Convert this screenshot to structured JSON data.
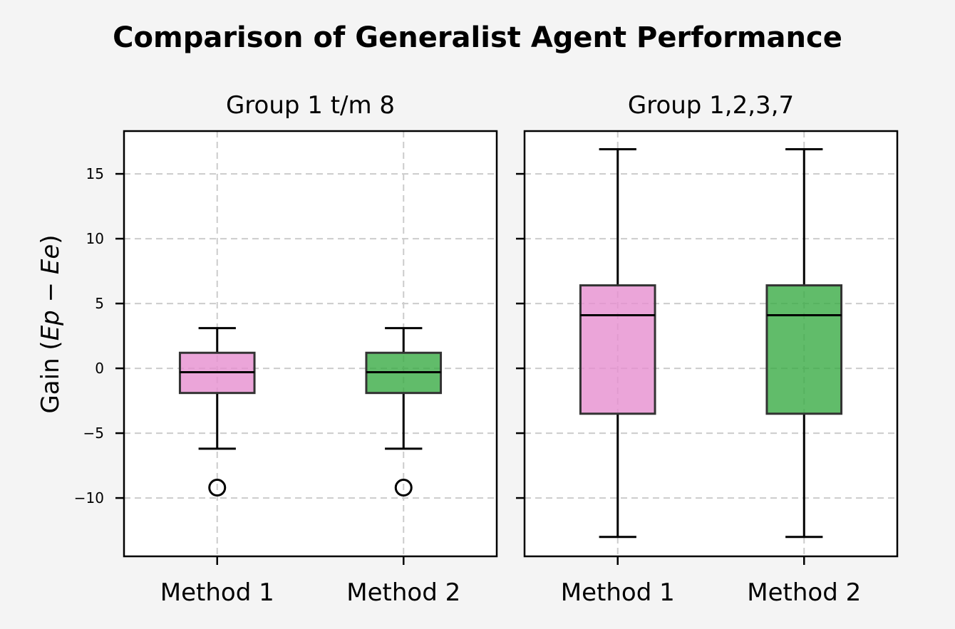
{
  "chart_data": {
    "type": "box",
    "title": "Comparison of Generalist Agent Performance",
    "ylabel_prefix": "Gain (",
    "ylabel_math": "Ep − Ee",
    "ylabel_suffix": ")",
    "ylim": [
      -14.5,
      18.3
    ],
    "yticks": [
      -10,
      -5,
      0,
      5,
      10,
      15
    ],
    "ytick_labels": [
      "−10",
      "−5",
      "0",
      "5",
      "10",
      "15"
    ],
    "grid": true,
    "colors": {
      "Method 1": "#e68fd0",
      "Method 2": "#3aab45"
    },
    "panels": [
      {
        "title": "Group 1 t/m 8",
        "categories": [
          "Method 1",
          "Method 2"
        ],
        "boxes": [
          {
            "name": "Method 1",
            "whislo": -6.2,
            "q1": -1.9,
            "med": -0.3,
            "q3": 1.2,
            "whishi": 3.1,
            "fliers": [
              -9.2
            ]
          },
          {
            "name": "Method 2",
            "whislo": -6.2,
            "q1": -1.9,
            "med": -0.3,
            "q3": 1.2,
            "whishi": 3.1,
            "fliers": [
              -9.2
            ]
          }
        ]
      },
      {
        "title": "Group 1,2,3,7",
        "categories": [
          "Method 1",
          "Method 2"
        ],
        "boxes": [
          {
            "name": "Method 1",
            "whislo": -13.0,
            "q1": -3.5,
            "med": 4.1,
            "q3": 6.4,
            "whishi": 16.9,
            "fliers": []
          },
          {
            "name": "Method 2",
            "whislo": -13.0,
            "q1": -3.5,
            "med": 4.1,
            "q3": 6.4,
            "whishi": 16.9,
            "fliers": []
          }
        ]
      }
    ]
  }
}
